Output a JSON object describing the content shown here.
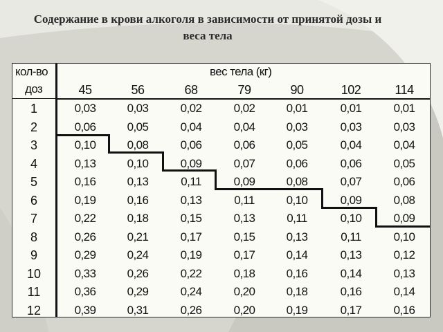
{
  "title": "Содержание в крови  алкоголя в зависимости от принятой дозы  и веса тела",
  "table": {
    "corner_top": "кол-во",
    "corner_bottom": "доз",
    "weight_header": "вес тела (кг)",
    "weights": [
      "45",
      "56",
      "68",
      "79",
      "90",
      "102",
      "114"
    ],
    "doses": [
      "1",
      "2",
      "3",
      "4",
      "5",
      "6",
      "7",
      "8",
      "9",
      "10",
      "11",
      "12"
    ],
    "rows": [
      [
        "0,03",
        "0,03",
        "0,02",
        "0,02",
        "0,01",
        "0,01",
        "0,01"
      ],
      [
        "0,06",
        "0,05",
        "0,04",
        "0,04",
        "0,03",
        "0,03",
        "0,03"
      ],
      [
        "0,10",
        "0,08",
        "0,06",
        "0,06",
        "0,05",
        "0,04",
        "0,04"
      ],
      [
        "0,13",
        "0,10",
        "0,09",
        "0,07",
        "0,06",
        "0,06",
        "0,05"
      ],
      [
        "0,16",
        "0,13",
        "0,11",
        "0,09",
        "0,08",
        "0,07",
        "0,06"
      ],
      [
        "0,19",
        "0,16",
        "0,13",
        "0,11",
        "0,10",
        "0,09",
        "0,08"
      ],
      [
        "0,22",
        "0,18",
        "0,15",
        "0,13",
        "0,11",
        "0,10",
        "0,09"
      ],
      [
        "0,26",
        "0,21",
        "0,17",
        "0,15",
        "0,13",
        "0,11",
        "0,10"
      ],
      [
        "0,29",
        "0,24",
        "0,19",
        "0,17",
        "0,14",
        "0,13",
        "0,12"
      ],
      [
        "0,33",
        "0,26",
        "0,22",
        "0,18",
        "0,16",
        "0,14",
        "0,13"
      ],
      [
        "0,36",
        "0,29",
        "0,24",
        "0,20",
        "0,18",
        "0,16",
        "0,14"
      ],
      [
        "0,39",
        "0,31",
        "0,26",
        "0,20",
        "0,19",
        "0,17",
        "0,16"
      ]
    ]
  }
}
